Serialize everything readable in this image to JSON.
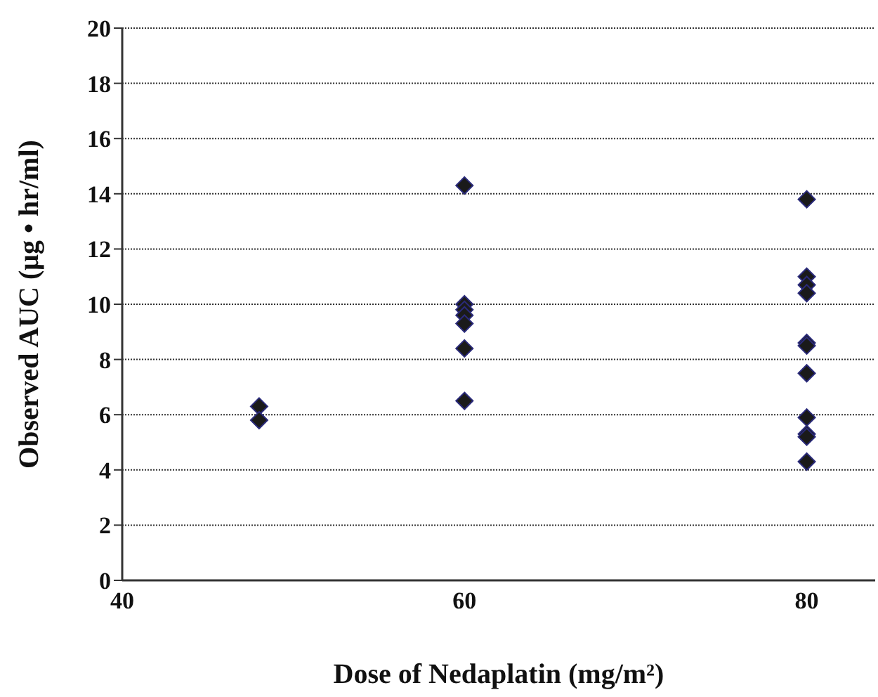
{
  "chart_data": {
    "type": "scatter",
    "xlabel": "Dose of Nedaplatin (mg/m²)",
    "ylabel": "Observed AUC (μg • hr/ml)",
    "x": [
      48,
      48,
      60,
      60,
      60,
      60,
      60,
      60,
      60,
      80,
      80,
      80,
      80,
      80,
      80,
      80,
      80,
      80,
      80,
      80
    ],
    "values": [
      6.3,
      5.8,
      14.3,
      10.0,
      9.8,
      9.6,
      9.3,
      8.4,
      6.5,
      13.8,
      11.0,
      10.7,
      10.4,
      8.6,
      8.5,
      7.5,
      5.9,
      5.3,
      5.2,
      4.3
    ],
    "color": "#1a1a1a",
    "marker": "diamond",
    "xlim": [
      40,
      84
    ],
    "xticks": [
      40,
      60,
      80
    ],
    "ylim": [
      0,
      20
    ],
    "yticks": [
      0,
      2,
      4,
      6,
      8,
      10,
      12,
      14,
      16,
      18,
      20
    ],
    "grid": "y"
  }
}
